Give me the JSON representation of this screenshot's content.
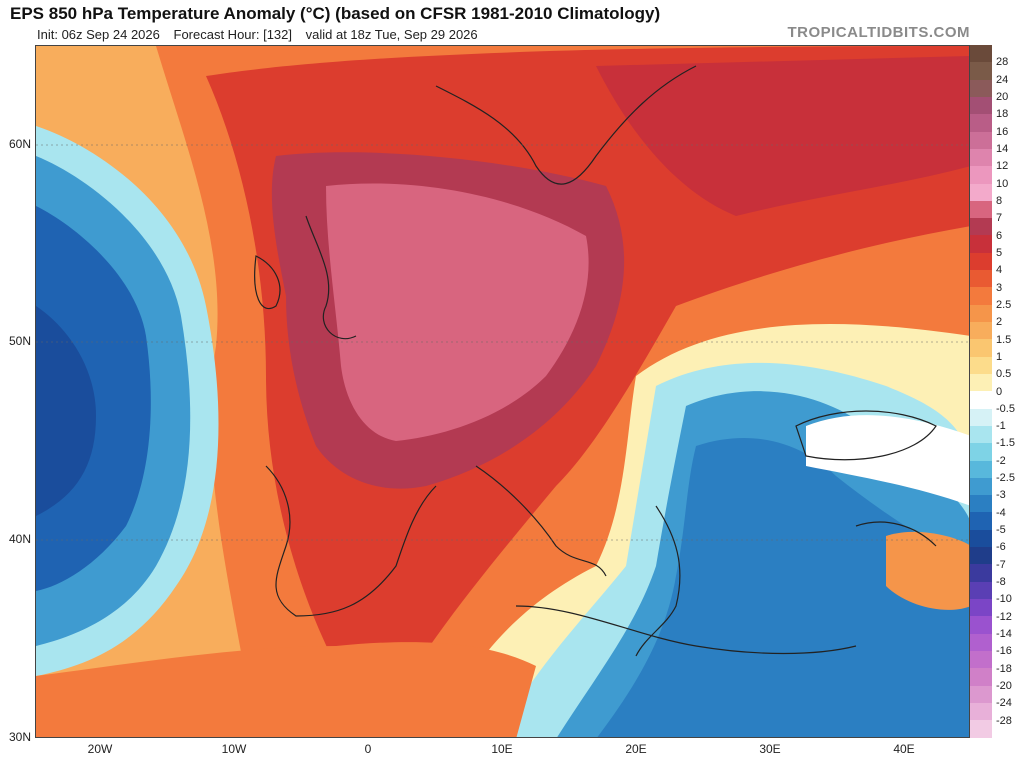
{
  "header": {
    "title": "EPS 850 hPa Temperature Anomaly (°C) (based on CFSR 1981-2010 Climatology)",
    "init": "Init: 06z Sep 24 2026",
    "forecast_hour": "Forecast Hour: [132]",
    "valid": "valid at 18z Tue, Sep 29 2026",
    "watermark": "TROPICALTIDBITS.COM"
  },
  "axes": {
    "lat_labels": [
      "60N",
      "50N",
      "40N",
      "30N"
    ],
    "lon_labels": [
      "20W",
      "10W",
      "0",
      "10E",
      "20E",
      "30E",
      "40E"
    ]
  },
  "colorbar": {
    "labels": [
      "28",
      "24",
      "20",
      "18",
      "16",
      "14",
      "12",
      "10",
      "8",
      "7",
      "6",
      "5",
      "4",
      "3",
      "2.5",
      "2",
      "1.5",
      "1",
      "0.5",
      "0",
      "-0.5",
      "-1",
      "-1.5",
      "-2",
      "-2.5",
      "-3",
      "-4",
      "-5",
      "-6",
      "-7",
      "-8",
      "-10",
      "-12",
      "-14",
      "-16",
      "-18",
      "-20",
      "-24",
      "-28"
    ],
    "colors": [
      "#7a5a48",
      "#8b5a5a",
      "#a34f74",
      "#b95d87",
      "#cc6f98",
      "#de84ad",
      "#ec97be",
      "#f3aacb",
      "#d8657f",
      "#b33a52",
      "#c8303a",
      "#dc3d2e",
      "#e95a32",
      "#f37a3d",
      "#f5954a",
      "#f8ad5c",
      "#fac670",
      "#fcdc8b",
      "#fdf0b5",
      "#ffffff",
      "#d6f2f6",
      "#a9e5ef",
      "#7ed3e6",
      "#58b8dc",
      "#3f9bd0",
      "#2b7fc2",
      "#1f63b2",
      "#1a4d9c",
      "#1f3d8a",
      "#3b3a9e",
      "#5a3fb4",
      "#7b45c6",
      "#9a52cf",
      "#b060cf",
      "#c26fcb",
      "#d080c8",
      "#dc98cf",
      "#e8b0d9",
      "#f2cbe4"
    ]
  }
}
